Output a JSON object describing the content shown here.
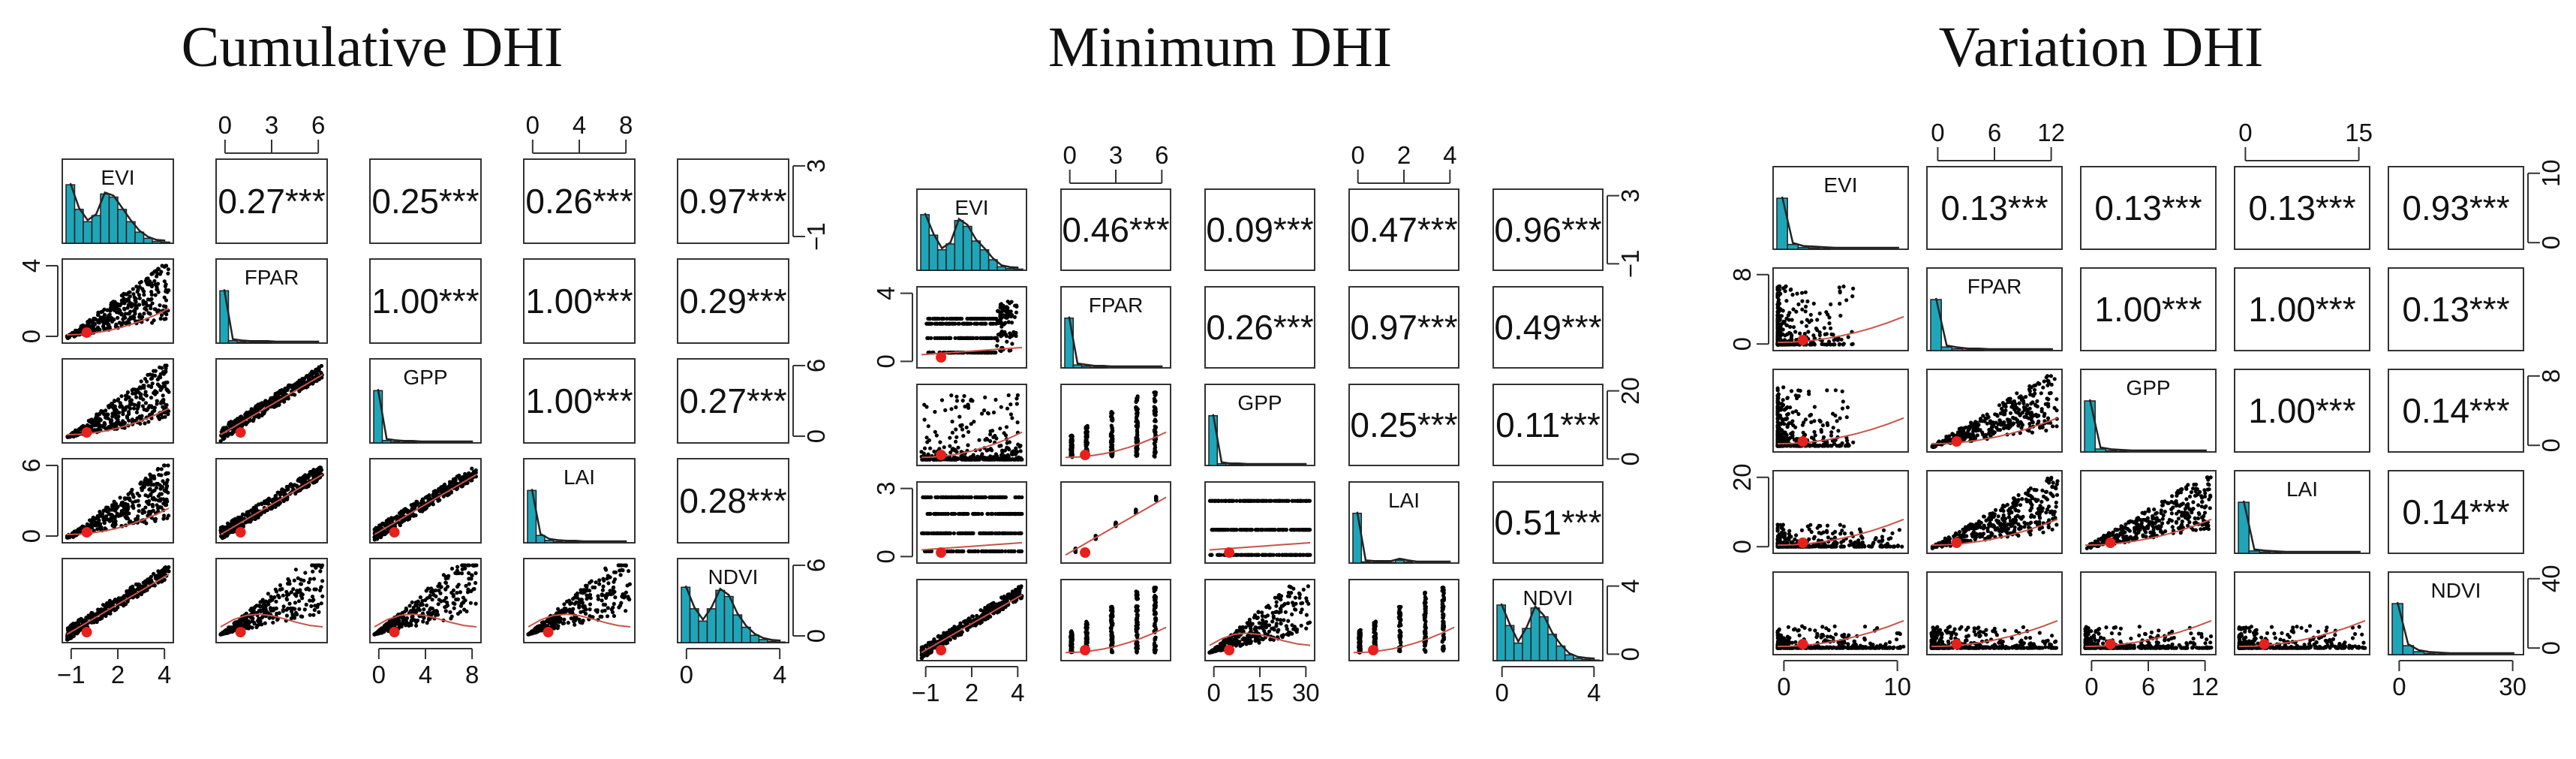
{
  "chart_data": [
    {
      "type": "scatter-matrix",
      "title": "Cumulative DHI",
      "variables": [
        "EVI",
        "FPAR",
        "GPP",
        "LAI",
        "NDVI"
      ],
      "correlations": [
        {
          "pair": [
            "EVI",
            "FPAR"
          ],
          "text": "0.27***"
        },
        {
          "pair": [
            "EVI",
            "GPP"
          ],
          "text": "0.25***"
        },
        {
          "pair": [
            "EVI",
            "LAI"
          ],
          "text": "0.26***"
        },
        {
          "pair": [
            "EVI",
            "NDVI"
          ],
          "text": "0.97***"
        },
        {
          "pair": [
            "FPAR",
            "GPP"
          ],
          "text": "1.00***"
        },
        {
          "pair": [
            "FPAR",
            "LAI"
          ],
          "text": "1.00***"
        },
        {
          "pair": [
            "FPAR",
            "NDVI"
          ],
          "text": "0.29***"
        },
        {
          "pair": [
            "GPP",
            "LAI"
          ],
          "text": "1.00***"
        },
        {
          "pair": [
            "GPP",
            "NDVI"
          ],
          "text": "0.27***"
        },
        {
          "pair": [
            "LAI",
            "NDVI"
          ],
          "text": "0.28***"
        }
      ],
      "top_axes": [
        {
          "col": 1,
          "ticks": [
            "0",
            "3",
            "6"
          ]
        },
        {
          "col": 3,
          "ticks": [
            "0",
            "4",
            "8"
          ]
        }
      ],
      "bottom_axes": [
        {
          "col": 0,
          "ticks": [
            "−1",
            "2",
            "4"
          ]
        },
        {
          "col": 2,
          "ticks": [
            "0",
            "4",
            "8"
          ]
        },
        {
          "col": 4,
          "ticks": [
            "0",
            "4"
          ]
        }
      ],
      "left_axes": [
        {
          "row": 1,
          "ticks": [
            "0",
            "4"
          ]
        },
        {
          "row": 3,
          "ticks": [
            "0",
            "6"
          ]
        }
      ],
      "right_axes": [
        {
          "row": 0,
          "ticks": [
            "−1",
            "3"
          ]
        },
        {
          "row": 2,
          "ticks": [
            "0",
            "6"
          ]
        },
        {
          "row": 4,
          "ticks": [
            "0",
            "6"
          ]
        }
      ]
    },
    {
      "type": "scatter-matrix",
      "title": "Minimum DHI",
      "variables": [
        "EVI",
        "FPAR",
        "GPP",
        "LAI",
        "NDVI"
      ],
      "correlations": [
        {
          "pair": [
            "EVI",
            "FPAR"
          ],
          "text": "0.46***"
        },
        {
          "pair": [
            "EVI",
            "GPP"
          ],
          "text": "0.09***"
        },
        {
          "pair": [
            "EVI",
            "LAI"
          ],
          "text": "0.47***"
        },
        {
          "pair": [
            "EVI",
            "NDVI"
          ],
          "text": "0.96***"
        },
        {
          "pair": [
            "FPAR",
            "GPP"
          ],
          "text": "0.26***"
        },
        {
          "pair": [
            "FPAR",
            "LAI"
          ],
          "text": "0.97***"
        },
        {
          "pair": [
            "FPAR",
            "NDVI"
          ],
          "text": "0.49***"
        },
        {
          "pair": [
            "GPP",
            "LAI"
          ],
          "text": "0.25***"
        },
        {
          "pair": [
            "GPP",
            "NDVI"
          ],
          "text": "0.11***"
        },
        {
          "pair": [
            "LAI",
            "NDVI"
          ],
          "text": "0.51***"
        }
      ],
      "top_axes": [
        {
          "col": 1,
          "ticks": [
            "0",
            "3",
            "6"
          ]
        },
        {
          "col": 3,
          "ticks": [
            "0",
            "2",
            "4"
          ]
        }
      ],
      "bottom_axes": [
        {
          "col": 0,
          "ticks": [
            "−1",
            "2",
            "4"
          ]
        },
        {
          "col": 2,
          "ticks": [
            "0",
            "15",
            "30"
          ]
        },
        {
          "col": 4,
          "ticks": [
            "0",
            "4"
          ]
        }
      ],
      "left_axes": [
        {
          "row": 1,
          "ticks": [
            "0",
            "4"
          ]
        },
        {
          "row": 3,
          "ticks": [
            "0",
            "3"
          ]
        }
      ],
      "right_axes": [
        {
          "row": 0,
          "ticks": [
            "−1",
            "3"
          ]
        },
        {
          "row": 2,
          "ticks": [
            "0",
            "20"
          ]
        },
        {
          "row": 4,
          "ticks": [
            "0",
            "4"
          ]
        }
      ]
    },
    {
      "type": "scatter-matrix",
      "title": "Variation DHI",
      "variables": [
        "EVI",
        "FPAR",
        "GPP",
        "LAI",
        "NDVI"
      ],
      "correlations": [
        {
          "pair": [
            "EVI",
            "FPAR"
          ],
          "text": "0.13***"
        },
        {
          "pair": [
            "EVI",
            "GPP"
          ],
          "text": "0.13***"
        },
        {
          "pair": [
            "EVI",
            "LAI"
          ],
          "text": "0.13***"
        },
        {
          "pair": [
            "EVI",
            "NDVI"
          ],
          "text": "0.93***"
        },
        {
          "pair": [
            "FPAR",
            "GPP"
          ],
          "text": "1.00***"
        },
        {
          "pair": [
            "FPAR",
            "LAI"
          ],
          "text": "1.00***"
        },
        {
          "pair": [
            "FPAR",
            "NDVI"
          ],
          "text": "0.13***"
        },
        {
          "pair": [
            "GPP",
            "LAI"
          ],
          "text": "1.00***"
        },
        {
          "pair": [
            "GPP",
            "NDVI"
          ],
          "text": "0.14***"
        },
        {
          "pair": [
            "LAI",
            "NDVI"
          ],
          "text": "0.14***"
        }
      ],
      "top_axes": [
        {
          "col": 1,
          "ticks": [
            "0",
            "6",
            "12"
          ]
        },
        {
          "col": 3,
          "ticks": [
            "0",
            "15"
          ]
        }
      ],
      "bottom_axes": [
        {
          "col": 0,
          "ticks": [
            "0",
            "10"
          ]
        },
        {
          "col": 2,
          "ticks": [
            "0",
            "6",
            "12"
          ]
        },
        {
          "col": 4,
          "ticks": [
            "0",
            "30"
          ]
        }
      ],
      "left_axes": [
        {
          "row": 1,
          "ticks": [
            "0",
            "8"
          ]
        },
        {
          "row": 3,
          "ticks": [
            "0",
            "20"
          ]
        }
      ],
      "right_axes": [
        {
          "row": 0,
          "ticks": [
            "0",
            "10"
          ]
        },
        {
          "row": 2,
          "ticks": [
            "0",
            "8"
          ]
        },
        {
          "row": 4,
          "ticks": [
            "0",
            "40"
          ]
        }
      ]
    }
  ]
}
